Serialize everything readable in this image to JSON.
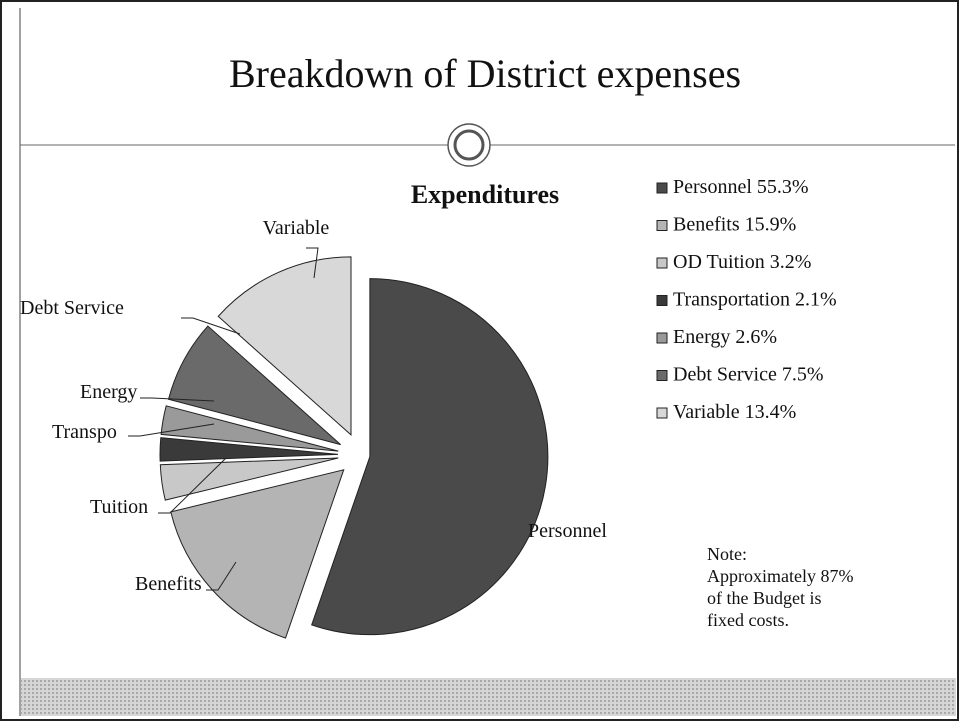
{
  "header": {
    "title": "Breakdown of District expenses"
  },
  "chart_data": {
    "type": "pie",
    "title": "Expenditures",
    "categories": [
      "Personnel",
      "Benefits",
      "Tuition",
      "Transpo",
      "Energy",
      "Debt Service",
      "Variable"
    ],
    "legend_labels": [
      "Personnel",
      "Benefits",
      "OD Tuition",
      "Transportation",
      "Energy",
      "Debt Service",
      "Variable"
    ],
    "values": [
      55.3,
      15.9,
      3.2,
      2.1,
      2.6,
      7.5,
      13.4
    ],
    "value_labels": [
      "55.3%",
      "15.9%",
      "3.2%",
      "2.1%",
      "2.6%",
      "7.5%",
      "13.4%"
    ],
    "colors": [
      "#4a4a4a",
      "#b4b4b4",
      "#c8c8c8",
      "#3a3a3a",
      "#9a9a9a",
      "#6a6a6a",
      "#d8d8d8"
    ],
    "legend": "right"
  },
  "note": {
    "lines": [
      "Note:",
      "Approximately 87%",
      "of the Budget is",
      "fixed costs."
    ]
  }
}
